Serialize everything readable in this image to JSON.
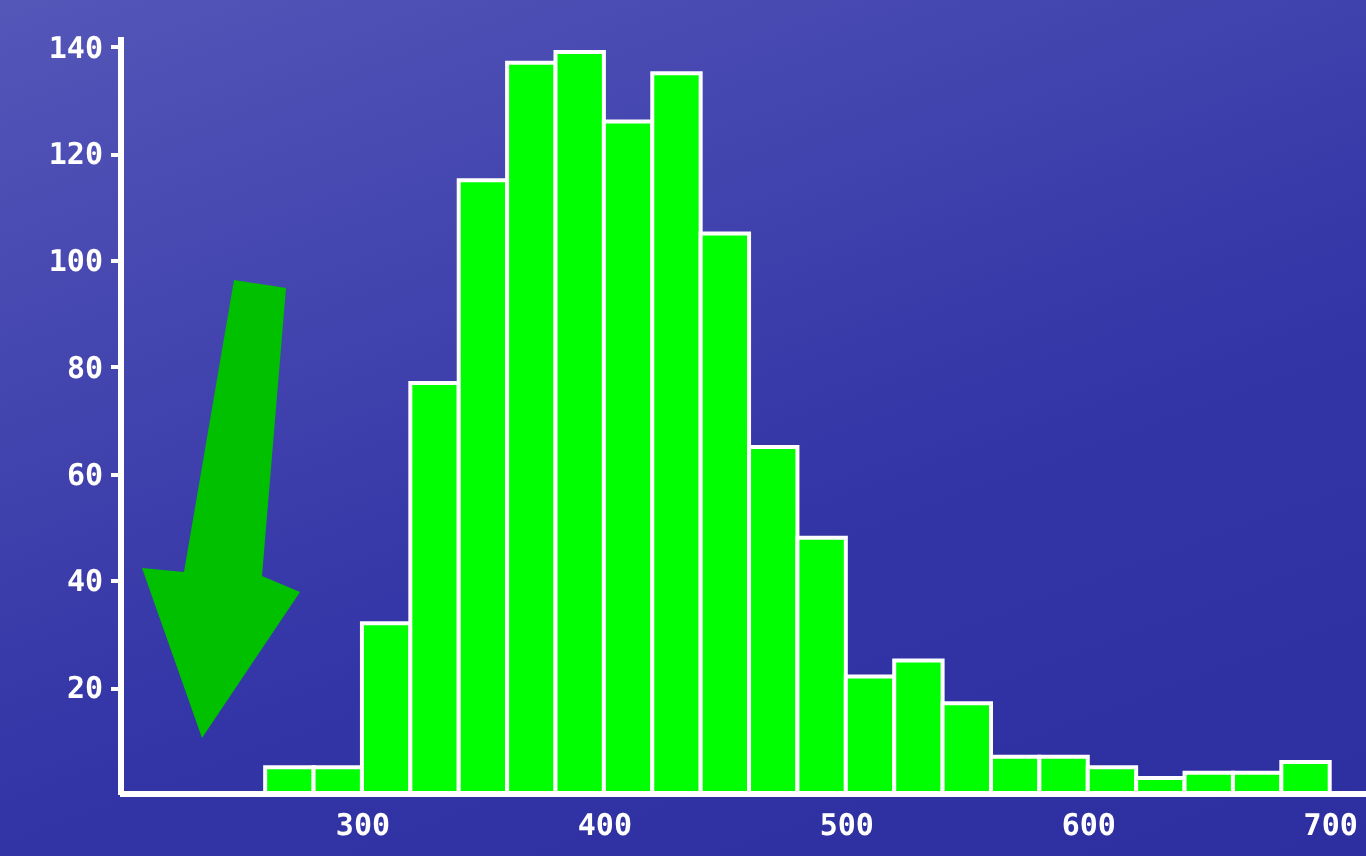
{
  "chart_data": {
    "type": "histogram",
    "bins": [
      260,
      280,
      300,
      320,
      340,
      360,
      380,
      400,
      420,
      440,
      460,
      480,
      500,
      520,
      540,
      560,
      580,
      600,
      620,
      640,
      660,
      680,
      700
    ],
    "values": [
      5,
      5,
      32,
      77,
      115,
      137,
      139,
      126,
      135,
      105,
      65,
      48,
      22,
      25,
      17,
      7,
      7,
      5,
      3,
      4,
      4,
      6
    ],
    "color": "#00ff00",
    "xlim": [
      200,
      715
    ],
    "xticks": [
      300,
      400,
      500,
      600,
      700
    ],
    "ylim": [
      0,
      142
    ],
    "yticks": [
      20,
      40,
      60,
      80,
      100,
      120,
      140
    ]
  }
}
